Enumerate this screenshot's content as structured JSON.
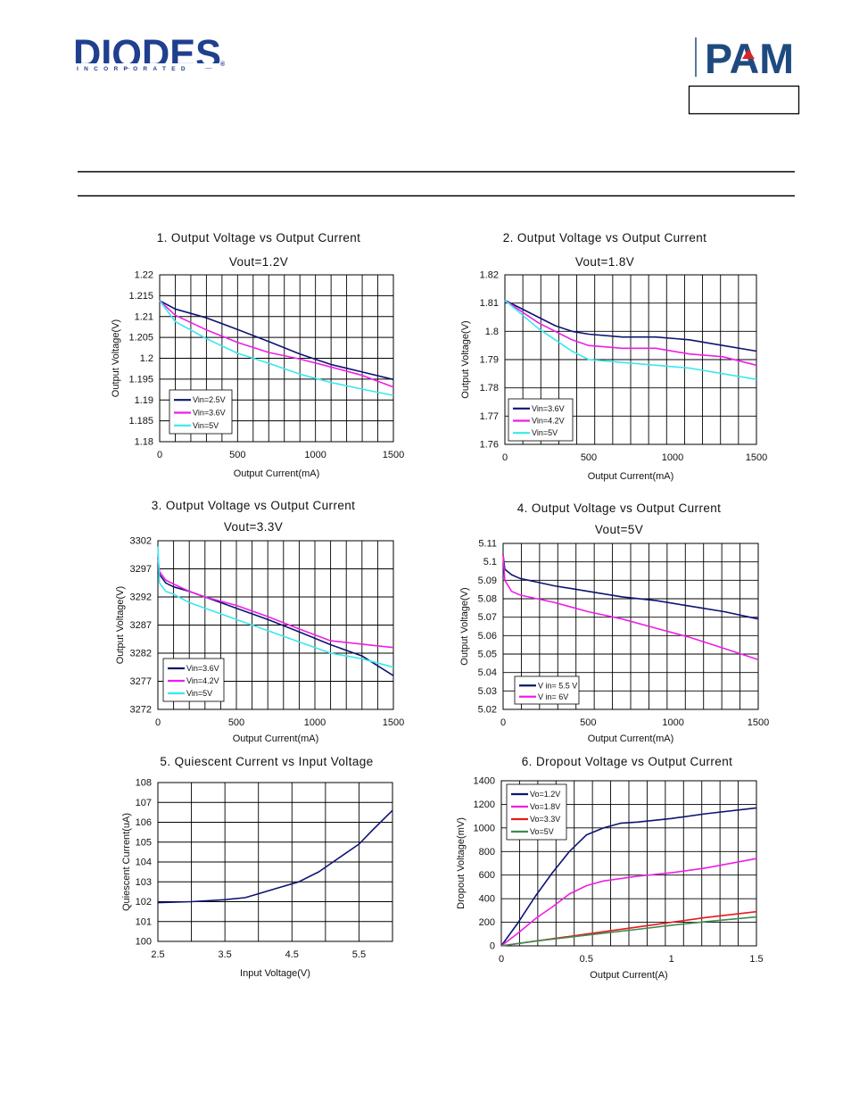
{
  "header": {
    "logo_left": "DIODES",
    "logo_left_sub": "INCORPORATED",
    "logo_left_mark": "®",
    "logo_right": "PAM",
    "logo_right_mark_color": "#d8232a",
    "brand_color": "#1f3f8f"
  },
  "chart_data": [
    {
      "type": "line",
      "title": "1. Output Voltage vs Output Current",
      "subtitle": "Vout=1.2V",
      "xlabel": "Output Current(mA)",
      "ylabel": "Output Voltage(V)",
      "xlim": [
        0,
        1500
      ],
      "ylim": [
        1.18,
        1.22
      ],
      "xticks": [
        "0",
        "500",
        "1000",
        "1500"
      ],
      "yticks": [
        "1.18",
        "1.185",
        "1.19",
        "1.195",
        "1.2",
        "1.205",
        "1.21",
        "1.215",
        "1.22"
      ],
      "legend": "bottom-left",
      "series": [
        {
          "name": "Vin=2.5V",
          "color": "#0d1470",
          "x": [
            0,
            100,
            300,
            500,
            700,
            900,
            1100,
            1300,
            1500
          ],
          "y": [
            1.2138,
            1.2118,
            1.2097,
            1.2069,
            1.204,
            1.201,
            1.1985,
            1.1967,
            1.1949
          ]
        },
        {
          "name": "Vin=3.6V",
          "color": "#ee1ee6",
          "x": [
            0,
            100,
            300,
            500,
            700,
            900,
            1100,
            1300,
            1500
          ],
          "y": [
            1.2138,
            1.2103,
            1.2068,
            1.2038,
            1.2014,
            1.1998,
            1.1979,
            1.1959,
            1.1931
          ]
        },
        {
          "name": "Vin=5V",
          "color": "#38e8ee",
          "x": [
            0,
            100,
            300,
            500,
            700,
            900,
            1100,
            1300,
            1500
          ],
          "y": [
            1.2138,
            1.2088,
            1.2047,
            1.2012,
            1.1988,
            1.1962,
            1.1942,
            1.1926,
            1.1911
          ]
        }
      ]
    },
    {
      "type": "line",
      "title": "2. Output Voltage vs Output Current",
      "subtitle": "Vout=1.8V",
      "xlabel": "Output Current(mA)",
      "ylabel": "Output Voltage(V)",
      "xlim": [
        0,
        1500
      ],
      "ylim": [
        1.76,
        1.82
      ],
      "xticks": [
        "0",
        "500",
        "1000",
        "1500"
      ],
      "yticks": [
        "1.76",
        "1.77",
        "1.78",
        "1.79",
        "1.8",
        "1.81",
        "1.82"
      ],
      "legend": "bottom-left",
      "series": [
        {
          "name": "Vin=3.6V",
          "color": "#0d1470",
          "x": [
            0,
            100,
            200,
            300,
            400,
            500,
            700,
            900,
            1100,
            1300,
            1500
          ],
          "y": [
            1.811,
            1.808,
            1.805,
            1.802,
            1.8,
            1.799,
            1.798,
            1.798,
            1.797,
            1.795,
            1.793
          ]
        },
        {
          "name": "Vin=4.2V",
          "color": "#ee1ee6",
          "x": [
            0,
            100,
            200,
            300,
            400,
            500,
            700,
            900,
            1100,
            1300,
            1500
          ],
          "y": [
            1.811,
            1.807,
            1.803,
            1.8,
            1.797,
            1.795,
            1.794,
            1.794,
            1.792,
            1.791,
            1.788
          ]
        },
        {
          "name": "Vin=5V",
          "color": "#38e8ee",
          "x": [
            0,
            100,
            200,
            300,
            400,
            500,
            700,
            900,
            1100,
            1300,
            1500
          ],
          "y": [
            1.811,
            1.806,
            1.801,
            1.797,
            1.793,
            1.79,
            1.789,
            1.788,
            1.787,
            1.785,
            1.783
          ]
        }
      ]
    },
    {
      "type": "line",
      "title": "3. Output Voltage vs Output Current",
      "subtitle": "Vout=3.3V",
      "xlabel": "Output Current(mA)",
      "ylabel": "Output Voltage(V)",
      "xlim": [
        0,
        1500
      ],
      "ylim": [
        3272,
        3302
      ],
      "xticks": [
        "0",
        "500",
        "1000",
        "1500"
      ],
      "yticks": [
        "3272",
        "3277",
        "3282",
        "3287",
        "3292",
        "3297",
        "3302"
      ],
      "legend": "bottom-left",
      "series": [
        {
          "name": "Vin=3.6V",
          "color": "#0d1470",
          "x": [
            0,
            10,
            50,
            100,
            200,
            300,
            500,
            700,
            900,
            1100,
            1300,
            1500
          ],
          "y": [
            3299,
            3296,
            3294.5,
            3293.8,
            3293,
            3292,
            3290,
            3288,
            3285.8,
            3283.5,
            3281.5,
            3278
          ]
        },
        {
          "name": "Vin=4.2V",
          "color": "#ee1ee6",
          "x": [
            0,
            10,
            50,
            100,
            200,
            300,
            500,
            700,
            900,
            1100,
            1300,
            1500
          ],
          "y": [
            3299,
            3296.5,
            3295,
            3294.3,
            3293,
            3292,
            3290.5,
            3288.5,
            3286.3,
            3284.2,
            3283.6,
            3283
          ]
        },
        {
          "name": "Vin=5V",
          "color": "#38e8ee",
          "x": [
            0,
            10,
            50,
            100,
            200,
            300,
            500,
            700,
            900,
            1100,
            1300,
            1500
          ],
          "y": [
            3301,
            3294.5,
            3293,
            3292.5,
            3291,
            3290,
            3288,
            3286,
            3284,
            3282,
            3281,
            3279.5
          ]
        }
      ]
    },
    {
      "type": "line",
      "title": "4. Output Voltage vs Output Current",
      "subtitle": "Vout=5V",
      "xlabel": "Output Current(mA)",
      "ylabel": "Output Voltage(V)",
      "xlim": [
        0,
        1500
      ],
      "ylim": [
        5.02,
        5.11
      ],
      "xticks": [
        "0",
        "500",
        "1000",
        "1500"
      ],
      "yticks": [
        "5.02",
        "5.03",
        "5.04",
        "5.05",
        "5.06",
        "5.07",
        "5.08",
        "5.09",
        "5.1",
        "5.11"
      ],
      "legend": "bottom-left",
      "series": [
        {
          "name": "V in= 5.5 V",
          "color": "#0d1470",
          "x": [
            0,
            10,
            50,
            100,
            200,
            300,
            500,
            700,
            900,
            1100,
            1300,
            1500
          ],
          "y": [
            5.104,
            5.096,
            5.093,
            5.091,
            5.089,
            5.087,
            5.084,
            5.081,
            5.079,
            5.076,
            5.073,
            5.069
          ]
        },
        {
          "name": "V in= 6V",
          "color": "#ee1ee6",
          "x": [
            0,
            10,
            50,
            100,
            200,
            300,
            500,
            700,
            900,
            1100,
            1300,
            1500
          ],
          "y": [
            5.104,
            5.09,
            5.084,
            5.082,
            5.08,
            5.078,
            5.073,
            5.069,
            5.064,
            5.059,
            5.053,
            5.047
          ]
        }
      ]
    },
    {
      "type": "line",
      "title": "5. Quiescent Current vs Input Voltage",
      "subtitle": "",
      "xlabel": "Input Voltage(V)",
      "ylabel": "Quiescent Current(uA)",
      "xlim": [
        2.5,
        6
      ],
      "ylim": [
        100,
        108
      ],
      "xticks": [
        "2.5",
        "3.5",
        "4.5",
        "5.5"
      ],
      "xtick_values": [
        2.5,
        3.5,
        4.5,
        5.5
      ],
      "yticks": [
        "100",
        "101",
        "102",
        "103",
        "104",
        "105",
        "106",
        "107",
        "108"
      ],
      "legend": "none",
      "series": [
        {
          "name": "",
          "color": "#0d1470",
          "x": [
            2.5,
            3,
            3.5,
            3.8,
            4,
            4.3,
            4.6,
            4.9,
            5.2,
            5.5,
            5.7,
            5.85,
            6
          ],
          "y": [
            101.95,
            102,
            102.1,
            102.2,
            102.4,
            102.7,
            103,
            103.5,
            104.2,
            104.9,
            105.6,
            106.1,
            106.6
          ]
        }
      ]
    },
    {
      "type": "line",
      "title": "6. Dropout Voltage vs Output Current",
      "subtitle": "",
      "xlabel": "Output Current(A)",
      "ylabel": "Dropout Voltage(mV)",
      "xlim": [
        0,
        1.5
      ],
      "ylim": [
        0,
        1400
      ],
      "xticks": [
        "0",
        "0.5",
        "1",
        "1.5"
      ],
      "xtick_values": [
        0,
        0.5,
        1,
        1.5
      ],
      "yticks": [
        "0",
        "200",
        "400",
        "600",
        "800",
        "1000",
        "1200",
        "1400"
      ],
      "legend": "top-left",
      "series": [
        {
          "name": "Vo=1.2V",
          "color": "#0d1470",
          "x": [
            0,
            0.1,
            0.2,
            0.3,
            0.4,
            0.5,
            0.6,
            0.7,
            0.8,
            1,
            1.2,
            1.5
          ],
          "y": [
            0,
            200,
            420,
            620,
            800,
            940,
            1000,
            1040,
            1050,
            1080,
            1120,
            1170
          ]
        },
        {
          "name": "Vo=1.8V",
          "color": "#ee1ee6",
          "x": [
            0,
            0.1,
            0.2,
            0.3,
            0.4,
            0.5,
            0.6,
            0.8,
            1,
            1.2,
            1.5
          ],
          "y": [
            0,
            110,
            230,
            330,
            440,
            510,
            550,
            590,
            620,
            660,
            740
          ]
        },
        {
          "name": "Vo=3.3V",
          "color": "#e81a1a",
          "x": [
            0,
            0.2,
            0.5,
            0.8,
            1,
            1.2,
            1.5
          ],
          "y": [
            0,
            40,
            100,
            160,
            200,
            240,
            290
          ]
        },
        {
          "name": "Vo=5V",
          "color": "#3e8a52",
          "x": [
            0,
            0.2,
            0.5,
            0.8,
            1,
            1.2,
            1.5
          ],
          "y": [
            0,
            40,
            90,
            140,
            175,
            205,
            245
          ]
        }
      ]
    }
  ]
}
